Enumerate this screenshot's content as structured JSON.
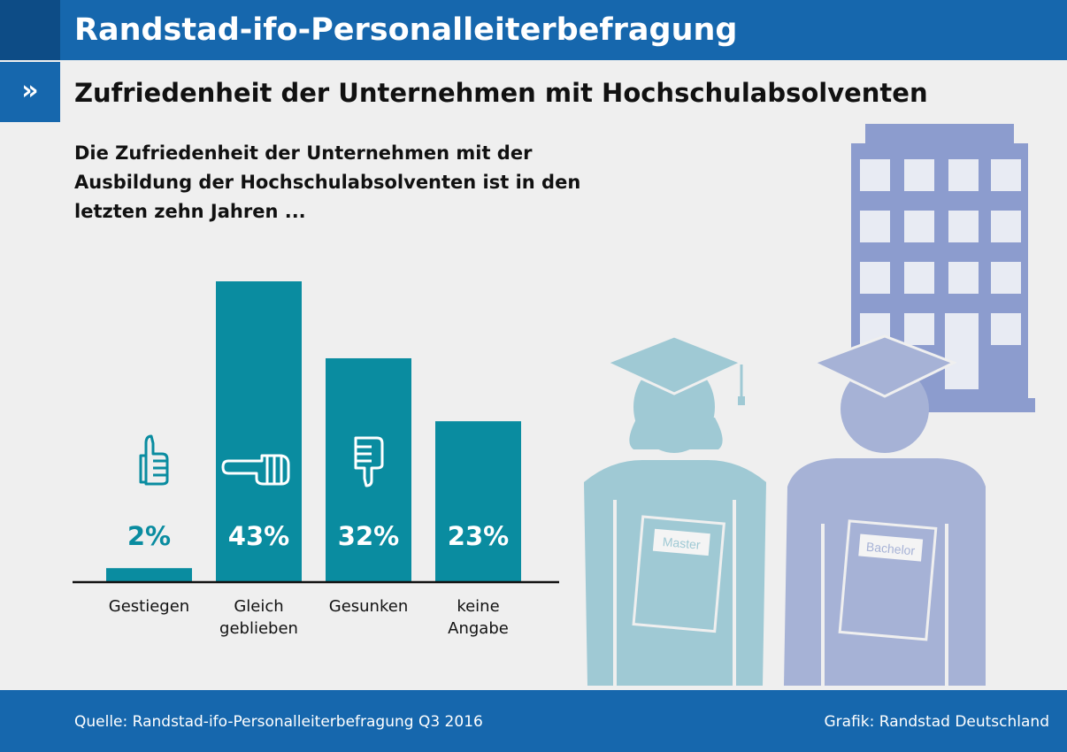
{
  "header": {
    "title": "Randstad-ifo-Personalleiterbefragung"
  },
  "subheader": {
    "marker": "»",
    "title": "Zufriedenheit der Unternehmen mit Hochschulabsolventen"
  },
  "question": "Die Zufriedenheit der Unternehmen mit der Ausbildung der Hochschulabsolventen ist in den letzten zehn Jahren ...",
  "chart_data": {
    "type": "bar",
    "categories": [
      [
        "Gestiegen"
      ],
      [
        "Gleich",
        "geblieben"
      ],
      [
        "Gesunken"
      ],
      [
        "keine",
        "Angabe"
      ]
    ],
    "values": [
      2,
      43,
      32,
      23
    ],
    "value_labels": [
      "2%",
      "43%",
      "32%",
      "23%"
    ],
    "icons": [
      "thumbs-up-icon",
      "thumbs-sideways-icon",
      "thumbs-down-icon",
      ""
    ],
    "title": "",
    "xlabel": "",
    "ylabel": "",
    "ylim": [
      0,
      45
    ],
    "grid": false,
    "legend": "none",
    "bar_color": "#0a8ca0"
  },
  "illustration": {
    "book_labels": [
      "Master",
      "Bachelor"
    ],
    "colors": {
      "building": "#8c9cce",
      "graduate_master": "#9fc9d4",
      "graduate_bachelor": "#a6b2d6"
    }
  },
  "footer": {
    "source": "Quelle: Randstad-ifo-Personalleiterbefragung Q3 2016",
    "credit": "Grafik: Randstad Deutschland"
  }
}
